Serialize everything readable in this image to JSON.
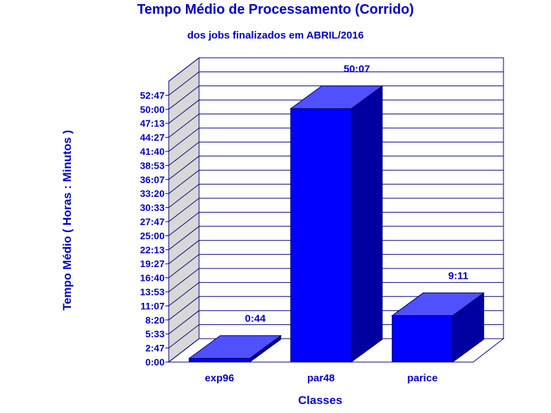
{
  "chart_data": {
    "type": "bar",
    "title": "Tempo Médio de Processamento (Corrido)",
    "subtitle": "dos jobs finalizados em ABRIL/2016",
    "xlabel": "Classes",
    "ylabel": "Tempo Médio ( Horas : Minutos )",
    "categories": [
      "exp96",
      "par48",
      "parice"
    ],
    "series": [
      {
        "values_minutes": [
          0.733,
          50.117,
          9.183
        ],
        "data_labels": [
          "0:44",
          "50:07",
          "9:11"
        ]
      }
    ],
    "y_ticks": [
      "0:00",
      "2:47",
      "5:33",
      "8:20",
      "11:07",
      "13:53",
      "16:40",
      "19:27",
      "22:13",
      "25:00",
      "27:47",
      "30:33",
      "33:20",
      "36:07",
      "38:53",
      "41:40",
      "44:27",
      "47:13",
      "50:00",
      "52:47"
    ],
    "ylim_minutes": [
      0,
      55.55
    ],
    "grid": true,
    "style": "3d",
    "colors": {
      "text": "#0000cc",
      "bar_front": "#0000ff",
      "bar_top": "#5050ff",
      "bar_side": "#0000a0",
      "grid": "#000080",
      "wall": "#d8d8d8"
    }
  }
}
